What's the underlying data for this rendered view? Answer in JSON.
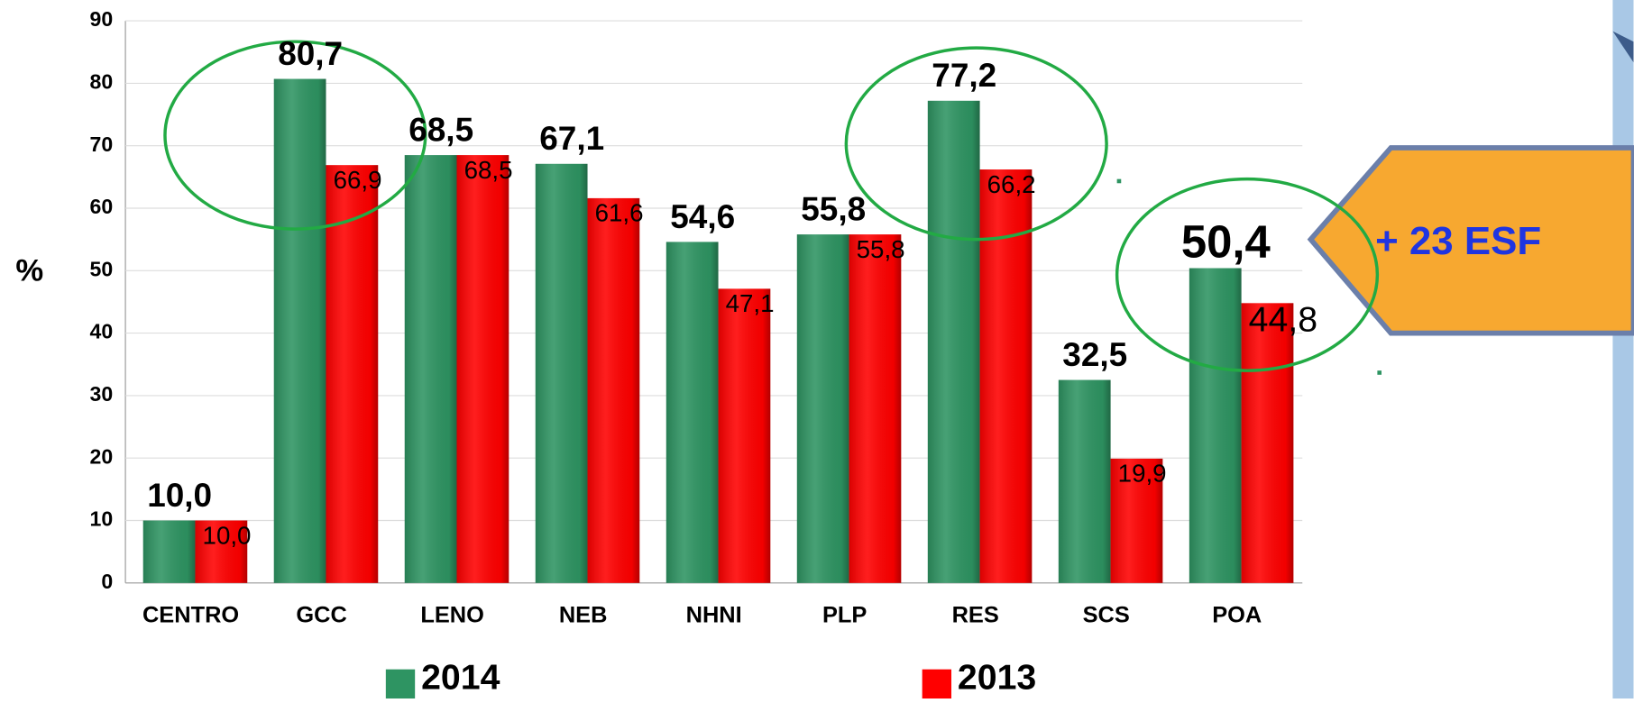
{
  "chart_data": {
    "type": "bar",
    "y_label": "%",
    "categories": [
      "CENTRO",
      "GCC",
      "LENO",
      "NEB",
      "NHNI",
      "PLP",
      "RES",
      "SCS",
      "POA"
    ],
    "series": [
      {
        "name": "2014",
        "color": "#2e9462",
        "values": [
          10.0,
          80.7,
          68.5,
          67.1,
          54.6,
          55.8,
          77.2,
          32.5,
          50.4
        ],
        "value_labels": [
          "10,0",
          "80,7",
          "68,5",
          "67,1",
          "54,6",
          "55,8",
          "77,2",
          "32,5",
          "50,4"
        ]
      },
      {
        "name": "2013",
        "color": "#ff0000",
        "values": [
          10.0,
          66.9,
          68.5,
          61.6,
          47.1,
          55.8,
          66.2,
          19.9,
          44.8
        ],
        "value_labels": [
          "10,0",
          "66,9",
          "68,5",
          "61,6",
          "47,1",
          "55,8",
          "66,2",
          "19,9",
          "44,8"
        ]
      }
    ],
    "ylim": [
      0,
      90
    ],
    "yticks": [
      0,
      10,
      20,
      30,
      40,
      50,
      60,
      70,
      80,
      90
    ],
    "grid": true,
    "annotation": "+ 23 ESF"
  }
}
